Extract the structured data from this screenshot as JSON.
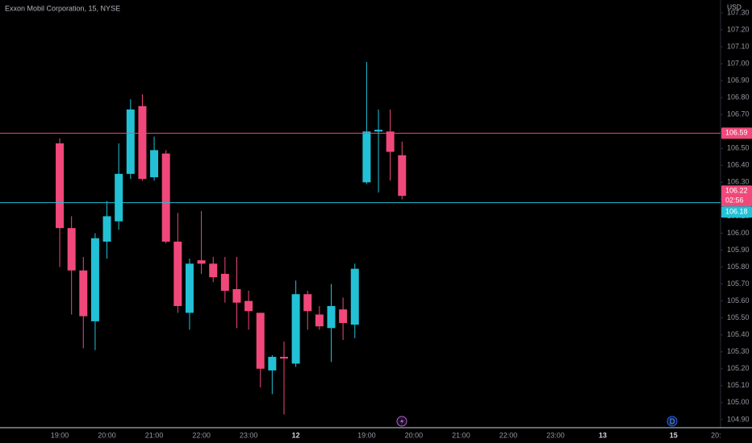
{
  "chart_data": {
    "type": "candlestick",
    "title": "Exxon Mobil Corporation, 15, NYSE",
    "currency": "USD",
    "up_color": "#22c1d6",
    "down_color": "#f0487a",
    "x": [
      0,
      1,
      2,
      3,
      4,
      5,
      6,
      7,
      8,
      9,
      10,
      11,
      12,
      13,
      14,
      15,
      16,
      17,
      18,
      19,
      20,
      21,
      22,
      23,
      24,
      25,
      26,
      27,
      28,
      29
    ],
    "open": [
      106.53,
      106.03,
      105.78,
      105.48,
      105.95,
      106.07,
      106.35,
      106.75,
      106.33,
      106.47,
      105.95,
      105.53,
      105.84,
      105.82,
      105.76,
      105.67,
      105.6,
      105.53,
      105.19,
      105.27,
      105.23,
      105.64,
      105.52,
      105.44,
      105.55,
      105.46,
      106.3,
      106.6,
      106.6,
      106.46
    ],
    "high": [
      106.56,
      106.1,
      105.86,
      106.0,
      106.19,
      106.53,
      106.79,
      106.82,
      106.57,
      106.49,
      106.12,
      105.85,
      106.13,
      105.86,
      105.86,
      105.86,
      105.66,
      105.53,
      105.28,
      105.36,
      105.72,
      105.66,
      105.57,
      105.7,
      105.62,
      105.82,
      107.01,
      106.73,
      106.73,
      106.54
    ],
    "low": [
      105.8,
      105.52,
      105.32,
      105.31,
      105.85,
      106.02,
      106.32,
      106.31,
      106.31,
      105.94,
      105.53,
      105.43,
      105.76,
      105.71,
      105.59,
      105.44,
      105.43,
      105.09,
      105.05,
      104.93,
      105.21,
      105.43,
      105.43,
      105.24,
      105.37,
      105.38,
      106.29,
      106.24,
      106.31,
      106.2
    ],
    "close": [
      106.03,
      105.78,
      105.51,
      105.97,
      106.1,
      106.35,
      106.73,
      106.32,
      106.49,
      105.95,
      105.57,
      105.82,
      105.82,
      105.74,
      105.66,
      105.59,
      105.54,
      105.2,
      105.27,
      105.26,
      105.64,
      105.54,
      105.45,
      105.57,
      105.47,
      105.79,
      106.6,
      106.61,
      106.48,
      106.22
    ],
    "xlim": [
      -5.06,
      55.98
    ],
    "xticks": [
      {
        "value": 0,
        "label": "19:00"
      },
      {
        "value": 4,
        "label": "20:00"
      },
      {
        "value": 8,
        "label": "21:00"
      },
      {
        "value": 12,
        "label": "22:00"
      },
      {
        "value": 16,
        "label": "23:00"
      },
      {
        "value": 20,
        "label": "12"
      },
      {
        "value": 26,
        "label": "19:00"
      },
      {
        "value": 30,
        "label": "20:00"
      },
      {
        "value": 34,
        "label": "21:00"
      },
      {
        "value": 38,
        "label": "22:00"
      },
      {
        "value": 42,
        "label": "23:00"
      },
      {
        "value": 46,
        "label": "13"
      },
      {
        "value": 52,
        "label": "15"
      },
      {
        "value": 55.6,
        "label": "20:"
      }
    ],
    "ylim": [
      104.852,
      107.376
    ],
    "yticks": [
      {
        "value": 104.9,
        "label": "104.90"
      },
      {
        "value": 105,
        "label": "105.00"
      },
      {
        "value": 105.1,
        "label": "105.10"
      },
      {
        "value": 105.2,
        "label": "105.20"
      },
      {
        "value": 105.3,
        "label": "105.30"
      },
      {
        "value": 105.4,
        "label": "105.40"
      },
      {
        "value": 105.5,
        "label": "105.50"
      },
      {
        "value": 105.6,
        "label": "105.60"
      },
      {
        "value": 105.7,
        "label": "105.70"
      },
      {
        "value": 105.8,
        "label": "105.80"
      },
      {
        "value": 105.9,
        "label": "105.90"
      },
      {
        "value": 106,
        "label": "106.00"
      },
      {
        "value": 106.1,
        "label": "106.10"
      },
      {
        "value": 106.2,
        "label": "106.20"
      },
      {
        "value": 106.3,
        "label": "106.30"
      },
      {
        "value": 106.4,
        "label": "106.40"
      },
      {
        "value": 106.5,
        "label": "106.50"
      },
      {
        "value": 106.6,
        "label": "106.60"
      },
      {
        "value": 106.7,
        "label": "106.70"
      },
      {
        "value": 106.8,
        "label": "106.80"
      },
      {
        "value": 106.9,
        "label": "106.90"
      },
      {
        "value": 107,
        "label": "107.00"
      },
      {
        "value": 107.1,
        "label": "107.10"
      },
      {
        "value": 107.2,
        "label": "107.20"
      },
      {
        "value": 107.3,
        "label": "107.30"
      }
    ],
    "price_lines": [
      {
        "value": 106.59,
        "label": "106.59",
        "color": "#f0487a"
      },
      {
        "value": 106.18,
        "label": "106.18",
        "color": "#22c1d6"
      }
    ],
    "last_price": {
      "value": 106.22,
      "label": "106.22",
      "countdown": "02:56",
      "color": "#f0487a"
    }
  }
}
